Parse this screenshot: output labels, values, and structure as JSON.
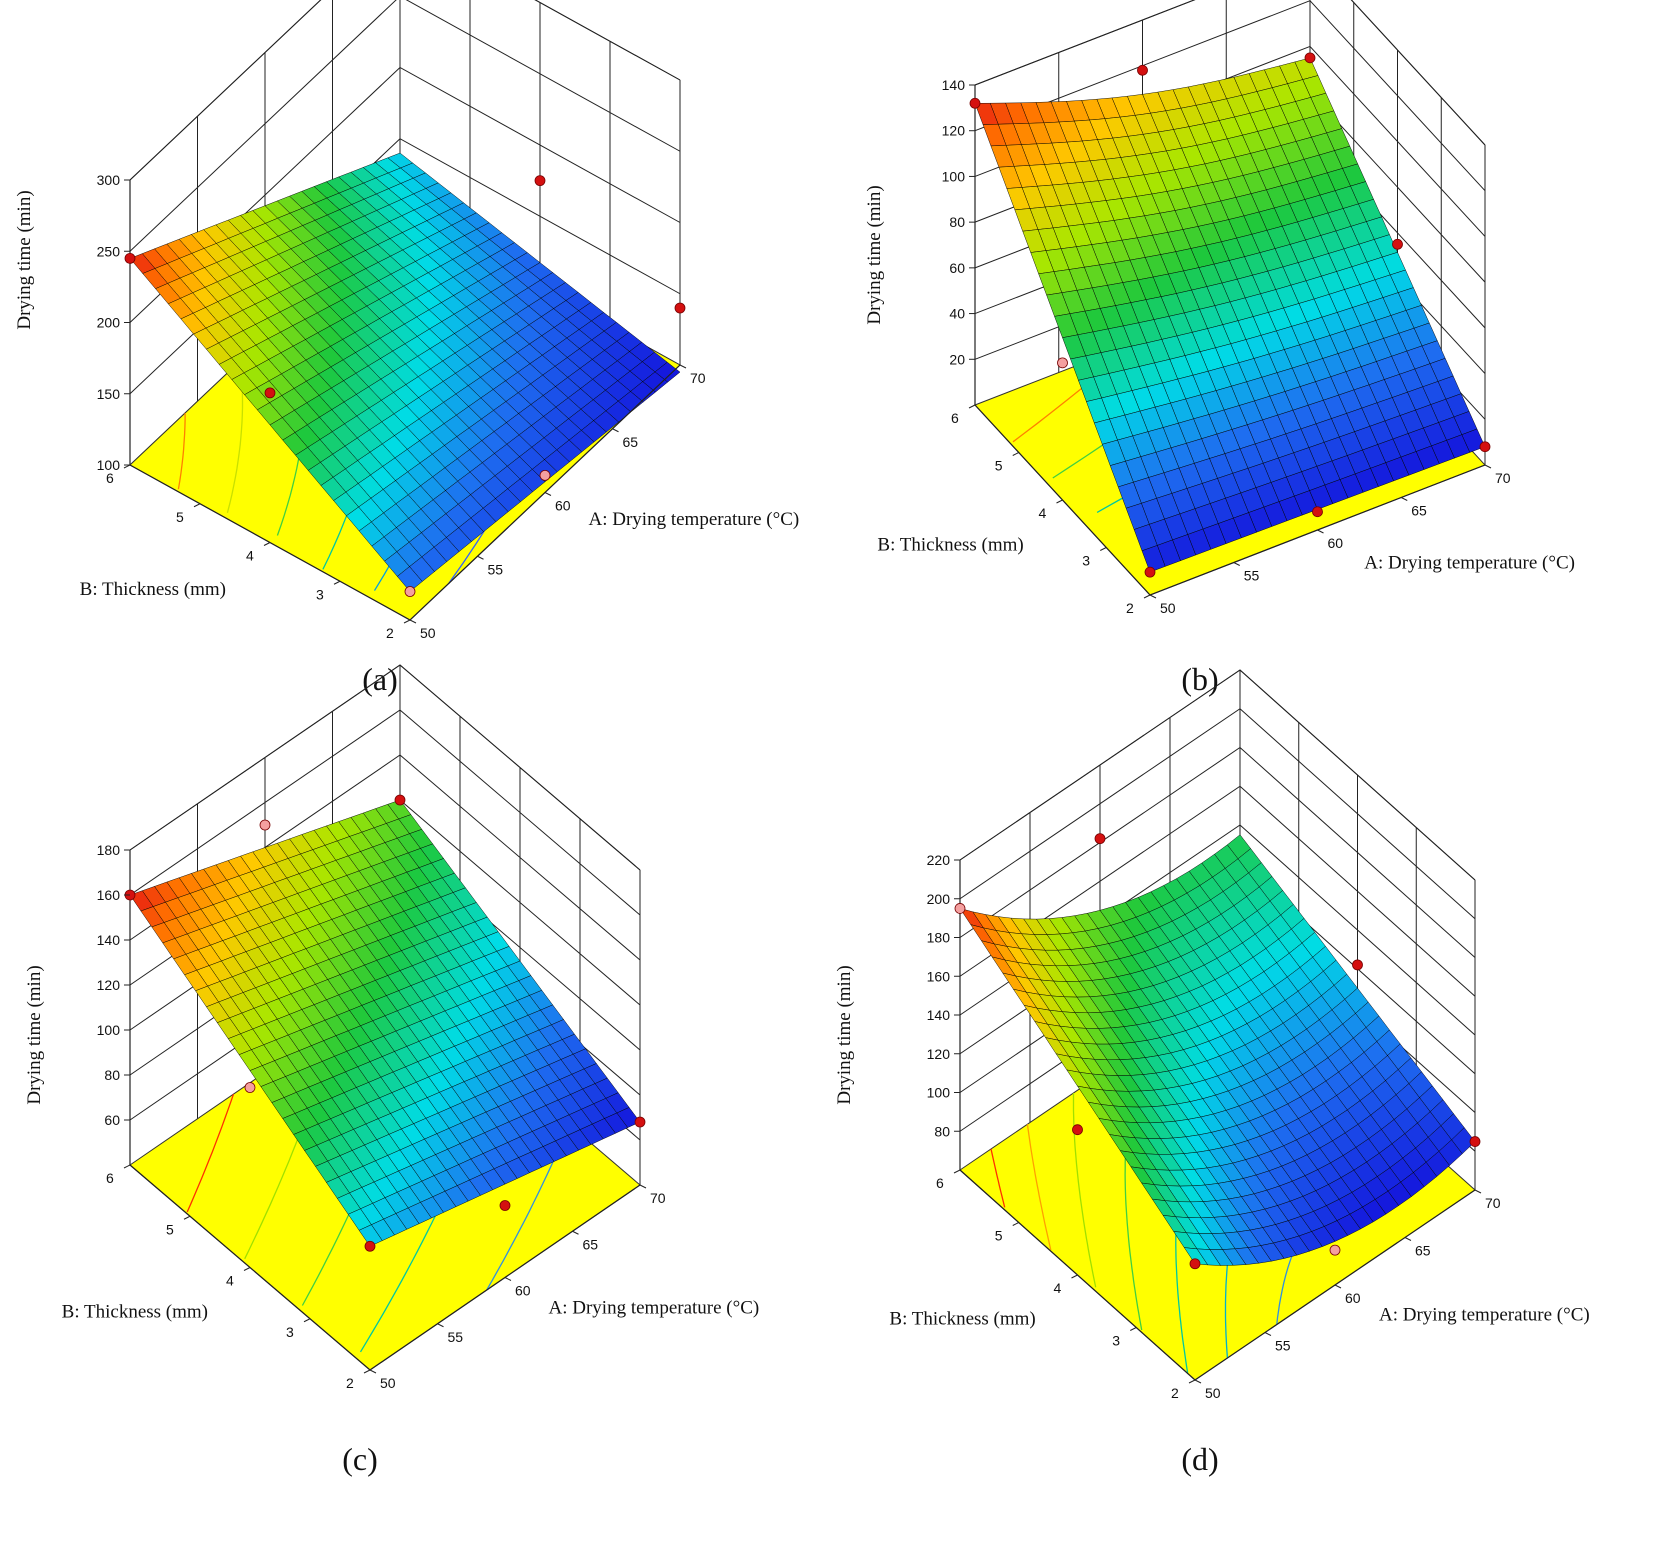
{
  "chart_data": [
    {
      "id": "a",
      "type": "surface3d",
      "caption": "(a)",
      "zlabel": "Drying time (min)",
      "xlabel": "A: Drying temperature (°C)",
      "ylabel": "B: Thickness (mm)",
      "x_ticks": [
        "50",
        "55",
        "60",
        "65",
        "70"
      ],
      "y_ticks": [
        "2",
        "3",
        "4",
        "5",
        "6"
      ],
      "z_ticks": [
        "100",
        "150",
        "200",
        "250",
        "300"
      ],
      "xlim": [
        50,
        70
      ],
      "ylim": [
        2,
        6
      ],
      "zlim": [
        100,
        300
      ],
      "surface_corners": {
        "x50_y2": 120,
        "x70_y2": 95,
        "x50_y6": 245,
        "x70_y6": 140
      },
      "design_points": [
        {
          "x": 50,
          "y": 6,
          "z": 245,
          "type": "above"
        },
        {
          "x": 50,
          "y": 4,
          "z": 205,
          "type": "above"
        },
        {
          "x": 50,
          "y": 2,
          "z": 120,
          "type": "below"
        },
        {
          "x": 60,
          "y": 2,
          "z": 112,
          "type": "below"
        },
        {
          "x": 70,
          "y": 4,
          "z": 175,
          "type": "above"
        },
        {
          "x": 70,
          "y": 2,
          "z": 140,
          "type": "above"
        }
      ],
      "contours": [
        "#ff8000",
        "#c8e000",
        "#40d040",
        "#00c8a0",
        "#00a0e0",
        "#3060ff"
      ]
    },
    {
      "id": "b",
      "type": "surface3d",
      "caption": "(b)",
      "zlabel": "Drying time (min)",
      "xlabel": "A: Drying temperature (°C)",
      "ylabel": "B: Thickness (mm)",
      "x_ticks": [
        "50",
        "55",
        "60",
        "65",
        "70"
      ],
      "y_ticks": [
        "2",
        "3",
        "4",
        "5",
        "6"
      ],
      "z_ticks": [
        "20",
        "40",
        "60",
        "80",
        "100",
        "120",
        "140"
      ],
      "xlim": [
        50,
        70
      ],
      "ylim": [
        2,
        6
      ],
      "zlim": [
        0,
        140
      ],
      "surface_corners": {
        "x50_y2": 10,
        "x70_y2": 8,
        "x50_y6": 132,
        "x70_y6": 95
      },
      "design_points": [
        {
          "x": 50,
          "y": 6,
          "z": 132,
          "type": "above"
        },
        {
          "x": 60,
          "y": 6,
          "z": 118,
          "type": "above"
        },
        {
          "x": 70,
          "y": 6,
          "z": 95,
          "type": "above"
        },
        {
          "x": 70,
          "y": 4,
          "z": 55,
          "type": "above"
        },
        {
          "x": 70,
          "y": 2,
          "z": 8,
          "type": "above"
        },
        {
          "x": 60,
          "y": 2,
          "z": 8,
          "type": "above"
        },
        {
          "x": 50,
          "y": 2,
          "z": 10,
          "type": "above"
        },
        {
          "x": 50,
          "y": 4,
          "z": 60,
          "type": "below"
        }
      ],
      "contours": [
        "#ff8000",
        "#40d040",
        "#00c8a0",
        "#00b0d0"
      ]
    },
    {
      "id": "c",
      "type": "surface3d",
      "caption": "(c)",
      "zlabel": "Drying time (min)",
      "xlabel": "A: Drying temperature (°C)",
      "ylabel": "B: Thickness (mm)",
      "x_ticks": [
        "50",
        "55",
        "60",
        "65",
        "70"
      ],
      "y_ticks": [
        "2",
        "3",
        "4",
        "5",
        "6"
      ],
      "z_ticks": [
        "60",
        "80",
        "100",
        "120",
        "140",
        "160",
        "180"
      ],
      "xlim": [
        50,
        70
      ],
      "ylim": [
        2,
        6
      ],
      "zlim": [
        40,
        180
      ],
      "surface_corners": {
        "x50_y2": 95,
        "x70_y2": 68,
        "x50_y6": 160,
        "x70_y6": 120
      },
      "design_points": [
        {
          "x": 50,
          "y": 6,
          "z": 160,
          "type": "above"
        },
        {
          "x": 60,
          "y": 6,
          "z": 150,
          "type": "below"
        },
        {
          "x": 70,
          "y": 6,
          "z": 120,
          "type": "above"
        },
        {
          "x": 70,
          "y": 2,
          "z": 68,
          "type": "above"
        },
        {
          "x": 60,
          "y": 2,
          "z": 72,
          "type": "above"
        },
        {
          "x": 50,
          "y": 2,
          "z": 95,
          "type": "above"
        },
        {
          "x": 50,
          "y": 4,
          "z": 120,
          "type": "below"
        }
      ],
      "contours": [
        "#ff3000",
        "#a0e000",
        "#40d040",
        "#00c8a0",
        "#3090e0"
      ]
    },
    {
      "id": "d",
      "type": "surface3d",
      "caption": "(d)",
      "zlabel": "Drying time (min)",
      "xlabel": "A: Drying temperature (°C)",
      "ylabel": "B: Thickness (mm)",
      "x_ticks": [
        "50",
        "55",
        "60",
        "65",
        "70"
      ],
      "y_ticks": [
        "2",
        "3",
        "4",
        "5",
        "6"
      ],
      "z_ticks": [
        "80",
        "100",
        "120",
        "140",
        "160",
        "180",
        "200",
        "220"
      ],
      "xlim": [
        50,
        70
      ],
      "ylim": [
        2,
        6
      ],
      "zlim": [
        60,
        220
      ],
      "surface_corners": {
        "x50_y2": 120,
        "x70_y2": 85,
        "x50_y6": 195,
        "x70_y6": 135
      },
      "design_points": [
        {
          "x": 50,
          "y": 6,
          "z": 195,
          "type": "below"
        },
        {
          "x": 60,
          "y": 6,
          "z": 182,
          "type": "above"
        },
        {
          "x": 70,
          "y": 4,
          "z": 122,
          "type": "above"
        },
        {
          "x": 70,
          "y": 2,
          "z": 85,
          "type": "above"
        },
        {
          "x": 60,
          "y": 2,
          "z": 78,
          "type": "below"
        },
        {
          "x": 50,
          "y": 2,
          "z": 120,
          "type": "above"
        },
        {
          "x": 50,
          "y": 4,
          "z": 135,
          "type": "above"
        }
      ],
      "contours": [
        "#ff3000",
        "#ffa000",
        "#a0e000",
        "#40d040",
        "#00c8a0",
        "#00b0d0",
        "#3090e0"
      ]
    }
  ]
}
